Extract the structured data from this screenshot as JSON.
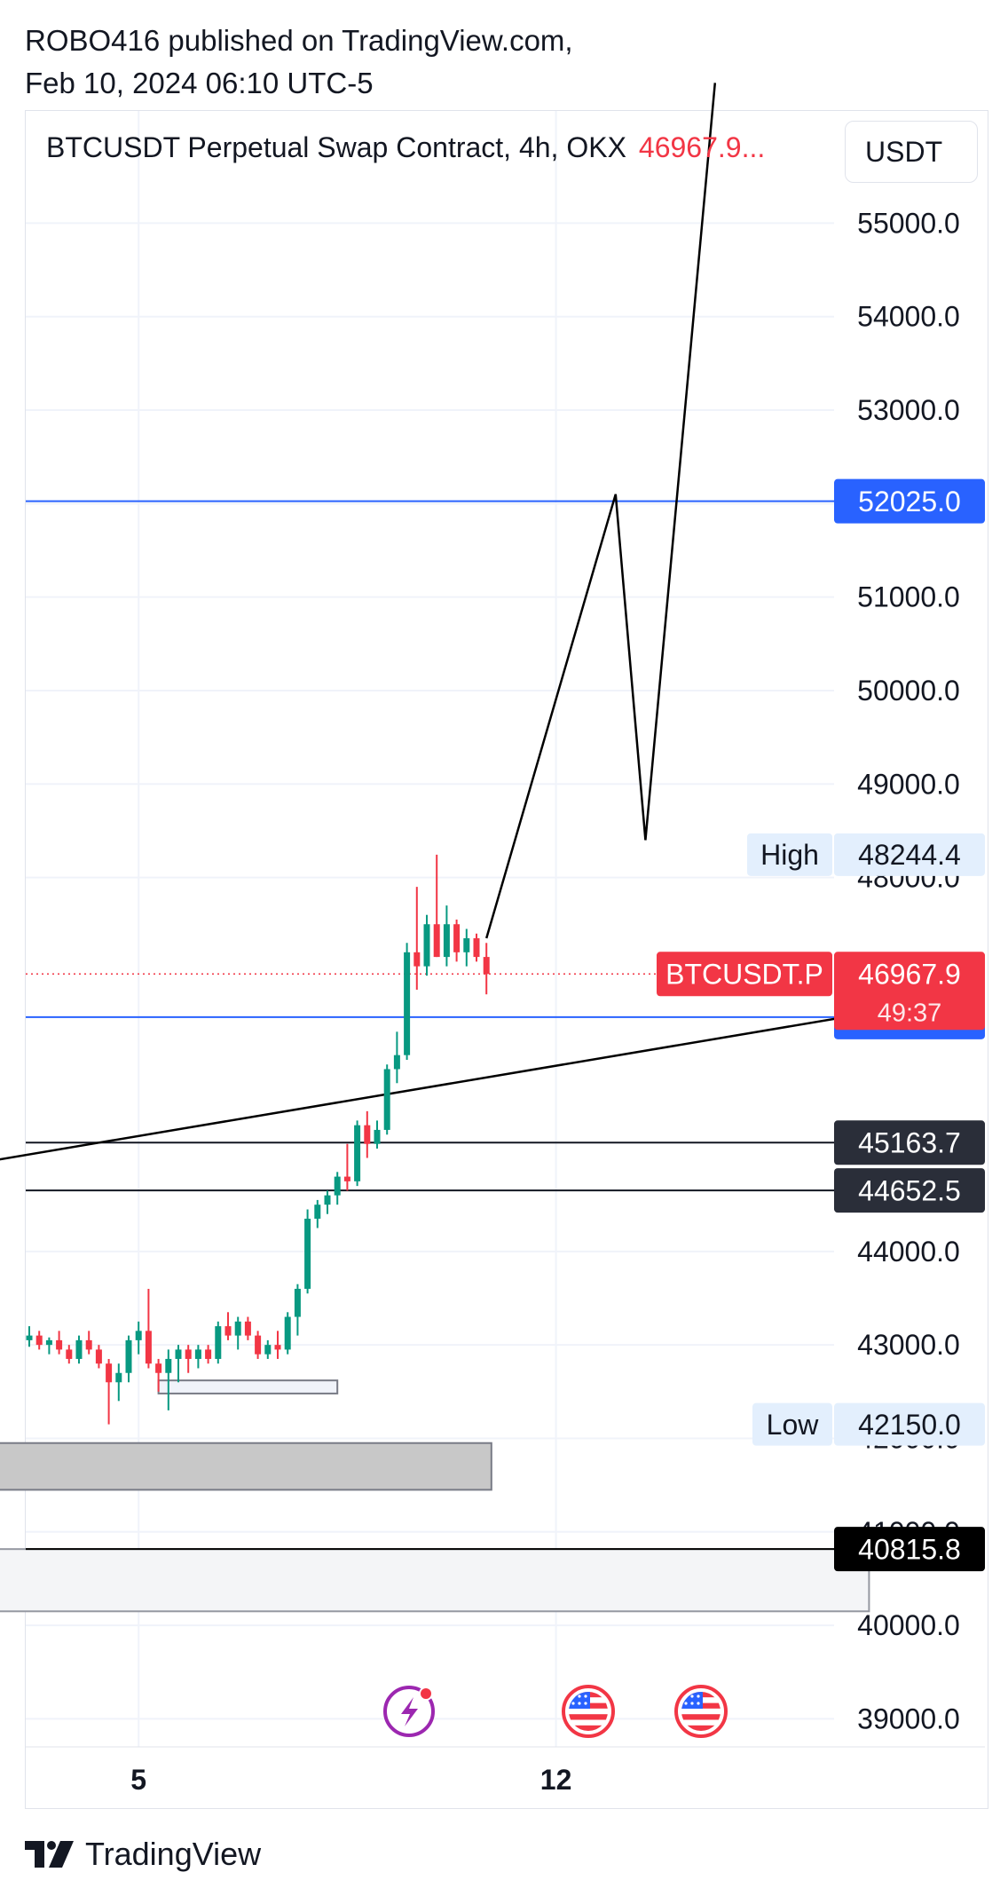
{
  "header": {
    "publisher_line": "ROBO416 published on TradingView.com,",
    "date_line": "Feb 10, 2024 06:10 UTC-5"
  },
  "chart_data": {
    "type": "candlestick",
    "title": "BTCUSDT Perpetual Swap Contract, 4h, OKX",
    "last_price_label": "46967.9...",
    "currency": "USDT",
    "y_axis_ticks": [
      55000,
      54000,
      53000,
      52000,
      51000,
      50000,
      49000,
      48000,
      44000,
      43000,
      42000,
      41000,
      40000,
      39000
    ],
    "ylim": [
      38700,
      56200
    ],
    "x_ticks": [
      {
        "label": "5",
        "index": 11
      },
      {
        "label": "12",
        "index": 53
      }
    ],
    "horizontal_lines": [
      {
        "price": 52025.0,
        "label": "52025.0",
        "color": "#2962ff"
      },
      {
        "price": 46506.7,
        "label": "46506.7",
        "color": "#2962ff"
      },
      {
        "price": 45163.7,
        "label": "45163.7",
        "color": "#131722"
      },
      {
        "price": 44652.5,
        "label": "44652.5",
        "color": "#131722"
      },
      {
        "price": 40815.8,
        "label": "40815.8",
        "color": "#000000"
      }
    ],
    "markers": [
      {
        "tag": "High",
        "price": 48244.4,
        "label": "48244.4"
      },
      {
        "tag": "Low",
        "price": 42150.0,
        "label": "42150.0"
      }
    ],
    "current": {
      "symbol": "BTCUSDT.P",
      "price": 46967.9,
      "label": "46967.9",
      "countdown": "49:37"
    },
    "candles": [
      [
        43050,
        43200,
        42980,
        43100
      ],
      [
        43100,
        43150,
        42950,
        43000
      ],
      [
        43000,
        43080,
        42900,
        43050
      ],
      [
        43050,
        43150,
        42900,
        42950
      ],
      [
        42950,
        43000,
        42800,
        42850
      ],
      [
        42850,
        43100,
        42800,
        43050
      ],
      [
        43050,
        43150,
        42900,
        42950
      ],
      [
        42950,
        43000,
        42750,
        42800
      ],
      [
        42800,
        42850,
        42150,
        42600
      ],
      [
        42600,
        42800,
        42400,
        42700
      ],
      [
        42700,
        43100,
        42600,
        43050
      ],
      [
        43050,
        43250,
        42900,
        43150
      ],
      [
        43150,
        43600,
        42750,
        42800
      ],
      [
        42800,
        42850,
        42500,
        42700
      ],
      [
        42700,
        42950,
        42300,
        42850
      ],
      [
        42850,
        43000,
        42600,
        42950
      ],
      [
        42950,
        43000,
        42700,
        42850
      ],
      [
        42850,
        43000,
        42750,
        42950
      ],
      [
        42950,
        43000,
        42800,
        42850
      ],
      [
        42850,
        43250,
        42800,
        43200
      ],
      [
        43200,
        43350,
        43050,
        43100
      ],
      [
        43100,
        43300,
        42950,
        43250
      ],
      [
        43250,
        43300,
        43050,
        43100
      ],
      [
        43100,
        43150,
        42850,
        42900
      ],
      [
        42900,
        43050,
        42850,
        43000
      ],
      [
        43000,
        43150,
        42850,
        42950
      ],
      [
        42950,
        43350,
        42900,
        43300
      ],
      [
        43300,
        43650,
        43100,
        43600
      ],
      [
        43600,
        44450,
        43550,
        44350
      ],
      [
        44350,
        44550,
        44250,
        44500
      ],
      [
        44500,
        44650,
        44400,
        44600
      ],
      [
        44600,
        44850,
        44500,
        44800
      ],
      [
        44800,
        45150,
        44650,
        44750
      ],
      [
        44750,
        45400,
        44700,
        45350
      ],
      [
        45350,
        45500,
        45000,
        45150
      ],
      [
        45150,
        45400,
        45100,
        45300
      ],
      [
        45300,
        46000,
        45250,
        45950
      ],
      [
        45950,
        46350,
        45800,
        46100
      ],
      [
        46100,
        47300,
        46050,
        47200
      ],
      [
        47200,
        47900,
        46800,
        47050
      ],
      [
        47050,
        47600,
        46950,
        47500
      ],
      [
        47500,
        48244.4,
        47150,
        47150
      ],
      [
        47150,
        47700,
        47050,
        47500
      ],
      [
        47500,
        47550,
        47100,
        47200
      ],
      [
        47200,
        47450,
        47050,
        47350
      ],
      [
        47350,
        47400,
        47100,
        47150
      ],
      [
        47150,
        47300,
        46750,
        46967.9
      ]
    ],
    "drawings": {
      "projection_path": [
        [
          46,
          47350
        ],
        [
          59,
          52100
        ],
        [
          62,
          48400
        ],
        [
          69,
          56500
        ]
      ],
      "trend_line": [
        [
          -10.5,
          44850
        ],
        [
          84.5,
          46550
        ]
      ],
      "zones": [
        {
          "start": 13,
          "end": 31,
          "top": 42620,
          "bottom": 42480,
          "fill": "#f0f3fa",
          "stroke": "#787b86"
        },
        {
          "start": -10.5,
          "end": 46.5,
          "top": 41950,
          "bottom": 41450,
          "fill": "#c8c8c8",
          "stroke": "#787b86"
        },
        {
          "start": -10.5,
          "end": 84.5,
          "top": 40815.8,
          "bottom": 40150,
          "fill": "#f4f5f7",
          "stroke": "#9598a1"
        }
      ]
    },
    "event_icons": [
      "lightning-icon",
      "us-flag-icon",
      "us-flag-icon"
    ],
    "colors": {
      "up": "#089981",
      "down": "#f23645",
      "blue": "#2962ff",
      "dark": "#2a2e39"
    }
  },
  "footer": {
    "brand": "TradingView"
  }
}
